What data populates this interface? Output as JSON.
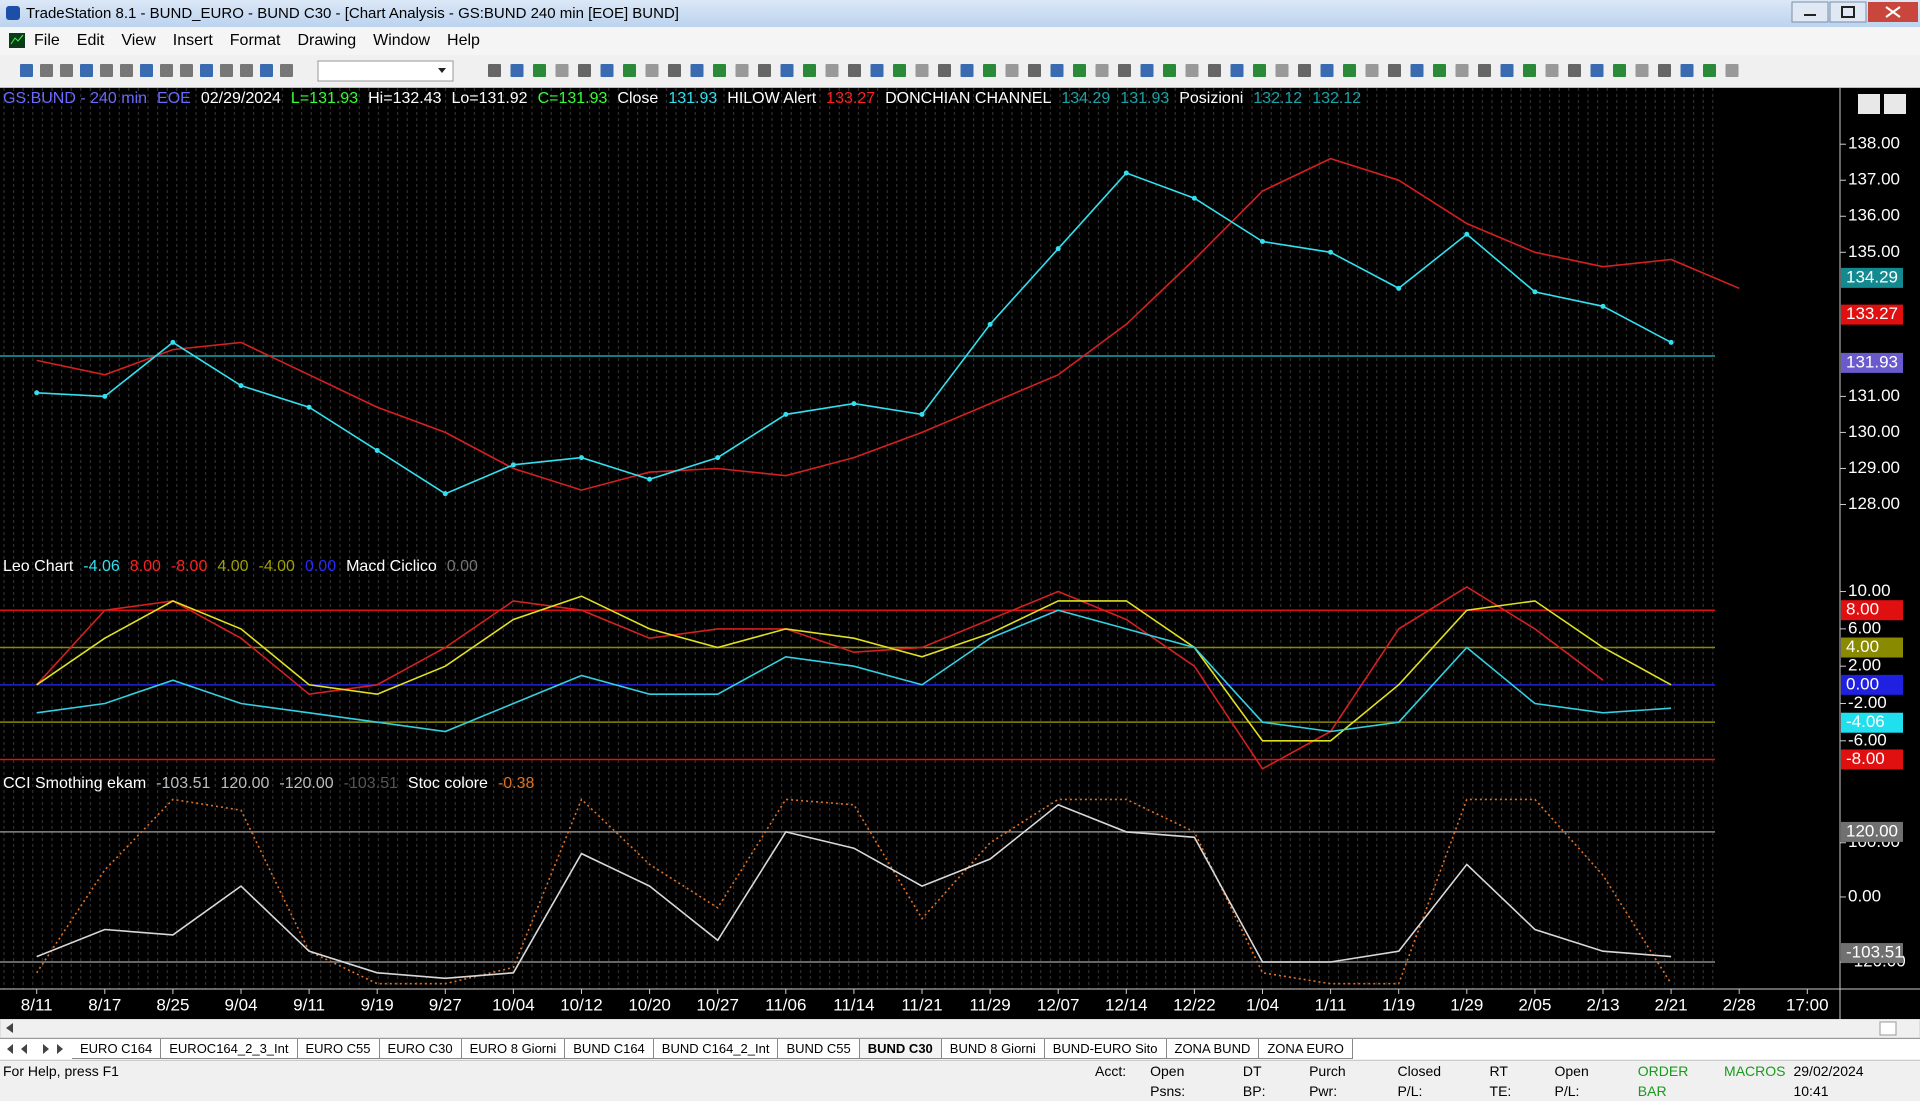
{
  "window": {
    "title": "TradeStation 8.1 - BUND_EURO - BUND  C30 - [Chart Analysis - GS:BUND  240 min  [EOE] BUND]",
    "menu": [
      "File",
      "Edit",
      "View",
      "Insert",
      "Format",
      "Drawing",
      "Window",
      "Help"
    ]
  },
  "chart_data": [
    {
      "type": "line",
      "legend": [
        {
          "text": "GS:BUND - 240 min",
          "color": "#6a6aff"
        },
        {
          "text": "EOE",
          "color": "#6a6aff"
        },
        {
          "text": "02/29/2024",
          "color": "#ffffff"
        },
        {
          "text": "L=131.93",
          "color": "#33ff33"
        },
        {
          "text": "Hi=132.43",
          "color": "#ffffff"
        },
        {
          "text": "Lo=131.92",
          "color": "#ffffff"
        },
        {
          "text": "C=131.93",
          "color": "#33ff33"
        },
        {
          "text": "Close",
          "color": "#ffffff"
        },
        {
          "text": "131.93",
          "color": "#33e0f0"
        },
        {
          "text": "HILOW Alert",
          "color": "#ffffff"
        },
        {
          "text": "133.27",
          "color": "#ff2020"
        },
        {
          "text": "DONCHIAN CHANNEL",
          "color": "#ffffff"
        },
        {
          "text": "134.29",
          "color": "#1aa3a8"
        },
        {
          "text": "131.93",
          "color": "#1aa3a8"
        },
        {
          "text": "Posizioni",
          "color": "#ffffff"
        },
        {
          "text": "132.12",
          "color": "#1aa3a8"
        },
        {
          "text": "132.12",
          "color": "#1aa3a8"
        }
      ],
      "series": [
        {
          "color": "#d42020",
          "values": [
            132.0,
            131.6,
            132.3,
            132.5,
            131.6,
            130.7,
            130.0,
            129.0,
            128.4,
            128.9,
            129.0,
            128.8,
            129.3,
            130.0,
            130.8,
            131.6,
            133.0,
            134.8,
            136.7,
            137.6,
            137.0,
            135.8,
            135.0,
            134.6,
            134.8,
            134.0,
            null
          ],
          "markers": false,
          "dashed": false
        },
        {
          "color": "#33e0f0",
          "values": [
            131.1,
            131.0,
            132.5,
            131.3,
            130.7,
            129.5,
            128.3,
            129.1,
            129.3,
            128.7,
            129.3,
            130.5,
            130.8,
            130.5,
            133.0,
            135.1,
            137.2,
            136.5,
            135.3,
            135.0,
            134.0,
            135.5,
            133.9,
            133.5,
            132.5,
            null,
            null
          ],
          "markers": true,
          "dashed": false
        }
      ],
      "ylim": [
        126.57,
        139.56
      ],
      "yticks": [
        {
          "value": 138,
          "label": "138.00"
        },
        {
          "value": 137,
          "label": "137.00"
        },
        {
          "value": 136,
          "label": "136.00"
        },
        {
          "value": 135,
          "label": "135.00"
        },
        {
          "value": 131,
          "label": "131.00"
        },
        {
          "value": 130,
          "label": "130.00"
        },
        {
          "value": 129,
          "label": "129.00"
        },
        {
          "value": 128,
          "label": "128.00"
        }
      ],
      "levels": [
        {
          "value": 132.12,
          "color": "#1aa3a8"
        }
      ],
      "value_boxes": [
        {
          "value": 134.29,
          "label": "134.29",
          "color": "#138a8f"
        },
        {
          "value": 133.27,
          "label": "133.27",
          "color": "#e01010"
        },
        {
          "value": 131.93,
          "label": "131.93",
          "color": "#6a5acd"
        }
      ]
    },
    {
      "type": "line",
      "legend": [
        {
          "text": "Leo Chart",
          "color": "#ffffff"
        },
        {
          "text": "-4.06",
          "color": "#33e0f0"
        },
        {
          "text": "8.00",
          "color": "#ff2020"
        },
        {
          "text": "-8.00",
          "color": "#ff2020"
        },
        {
          "text": "4.00",
          "color": "#a0a000"
        },
        {
          "text": "-4.00",
          "color": "#a0a000"
        },
        {
          "text": "0.00",
          "color": "#2828ff"
        },
        {
          "text": "Macd Ciclico",
          "color": "#ffffff"
        },
        {
          "text": "0.00",
          "color": "#777777"
        }
      ],
      "series": [
        {
          "color": "#d42020",
          "values": [
            0,
            8,
            9,
            5,
            -1,
            0,
            4,
            9,
            8,
            5,
            6,
            6,
            3.5,
            4,
            7,
            10,
            7,
            2,
            -9,
            -5,
            6,
            10.5,
            6,
            0.5,
            null,
            null,
            null
          ],
          "markers": false,
          "dashed": false
        },
        {
          "color": "#e0e020",
          "values": [
            0,
            5,
            9,
            6,
            0,
            -1,
            2,
            7,
            9.5,
            6,
            4,
            6,
            5,
            3,
            5.5,
            9,
            9,
            4,
            -6,
            -6,
            0,
            8,
            9,
            4,
            0,
            null,
            null
          ],
          "markers": false,
          "dashed": false
        },
        {
          "color": "#33d0e0",
          "values": [
            -3,
            -2,
            0.5,
            -2,
            -3,
            -4,
            -5,
            -2,
            1,
            -1,
            -1,
            3,
            2,
            0,
            5,
            8,
            6,
            4,
            -4,
            -5,
            -4,
            4,
            -2,
            -3,
            -2.5,
            null,
            null
          ],
          "markers": false,
          "dashed": false
        }
      ],
      "ylim": [
        -9.45,
        13.81
      ],
      "yticks": [
        {
          "value": 10,
          "label": "10.00"
        },
        {
          "value": 6,
          "label": "6.00"
        },
        {
          "value": 2,
          "label": "2.00"
        },
        {
          "value": -2,
          "label": "-2.00"
        },
        {
          "value": -6,
          "label": "-6.00"
        }
      ],
      "levels": [
        {
          "value": 8,
          "color": "#e01010"
        },
        {
          "value": 4,
          "color": "#8a8a00"
        },
        {
          "value": 0,
          "color": "#2020e0"
        },
        {
          "value": -4,
          "color": "#8a8a00"
        },
        {
          "value": -8,
          "color": "#e01010"
        }
      ],
      "value_boxes": [
        {
          "value": 8,
          "label": "8.00",
          "color": "#e01010"
        },
        {
          "value": 4,
          "label": "4.00",
          "color": "#8a8a00"
        },
        {
          "value": 0,
          "label": "0.00",
          "color": "#2020e0"
        },
        {
          "value": -4.06,
          "label": "-4.06",
          "color": "#20e0f0"
        },
        {
          "value": -8,
          "label": "-8.00",
          "color": "#e01010"
        }
      ]
    },
    {
      "type": "line",
      "legend": [
        {
          "text": "CCI Smothing ekam",
          "color": "#ffffff"
        },
        {
          "text": "-103.51",
          "color": "#bbbbbb"
        },
        {
          "text": "120.00",
          "color": "#bbbbbb"
        },
        {
          "text": "-120.00",
          "color": "#bbbbbb"
        },
        {
          "text": "-103.51",
          "color": "#555555"
        },
        {
          "text": "Stoc colore",
          "color": "#ffffff"
        },
        {
          "text": "-0.38",
          "color": "#e07020"
        }
      ],
      "categories": [
        "8/11",
        "8/17",
        "8/25",
        "9/04",
        "9/11",
        "9/19",
        "9/27",
        "10/04",
        "10/12",
        "10/20",
        "10/27",
        "11/06",
        "11/14",
        "11/21",
        "11/29",
        "12/07",
        "12/14",
        "12/22",
        "1/04",
        "1/11",
        "1/19",
        "1/29",
        "2/05",
        "2/13",
        "2/21",
        "2/28",
        "17:00"
      ],
      "series": [
        {
          "color": "#e07020",
          "values": [
            -140,
            50,
            180,
            160,
            -100,
            -160,
            -160,
            -130,
            180,
            60,
            -20,
            180,
            170,
            -40,
            100,
            180,
            180,
            120,
            -140,
            -160,
            -160,
            180,
            180,
            40,
            -160,
            null,
            null
          ],
          "markers": false,
          "dashed": true
        },
        {
          "color": "#d8d8d8",
          "values": [
            -110,
            -60,
            -70,
            20,
            -100,
            -140,
            -150,
            -140,
            80,
            20,
            -80,
            120,
            90,
            20,
            70,
            170,
            120,
            110,
            -120,
            -120,
            -100,
            60,
            -60,
            -100,
            -110,
            null,
            null
          ],
          "markers": false,
          "dashed": false
        }
      ],
      "ylim": [
        -169.8,
        228.7
      ],
      "yticks": [
        {
          "value": 100,
          "label": "100.00"
        },
        {
          "value": 0,
          "label": "0.00"
        },
        {
          "value": -120,
          "label": "-120.00"
        }
      ],
      "levels": [
        {
          "value": 120,
          "color": "#888888"
        },
        {
          "value": -120,
          "color": "#888888"
        }
      ],
      "value_boxes": [
        {
          "value": 120,
          "label": "120.00",
          "color": "#707070"
        },
        {
          "value": -103.51,
          "label": "-103.51",
          "color": "#707070"
        }
      ]
    }
  ],
  "tabs": {
    "items": [
      "EURO C164",
      "EUROC164_2_3_Int",
      "EURO C55",
      "EURO C30",
      "EURO 8 Giorni",
      "BUND C164",
      "BUND C164_2_Int",
      "BUND C55",
      "BUND C30",
      "BUND 8 Giorni",
      "BUND-EURO Sito",
      "ZONA BUND",
      "ZONA EURO"
    ],
    "active": 8
  },
  "status": {
    "help": "For Help, press F1",
    "fields": [
      "Acct:",
      "Open Psns:",
      "DT BP:",
      "Purch Pwr:",
      "Closed P/L:",
      "RT TE:",
      "Open P/L:"
    ],
    "order_bar": "ORDER BAR",
    "macros": "MACROS",
    "datetime": "29/02/2024 10:41"
  }
}
